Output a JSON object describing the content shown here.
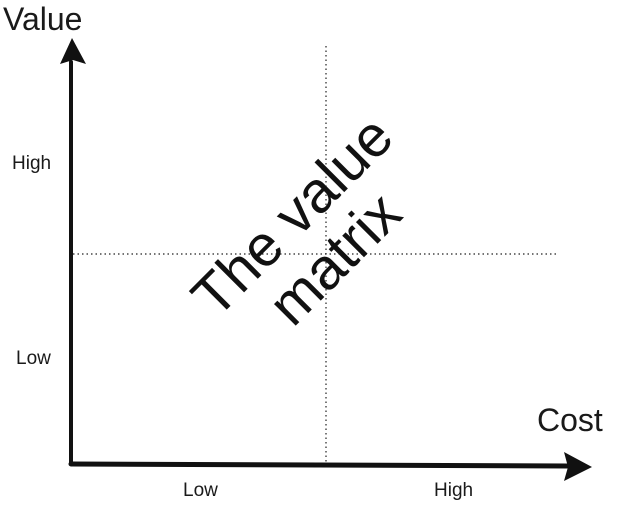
{
  "diagram": {
    "title_line_1": "The value",
    "title_line_2": "matrix",
    "y_axis": {
      "label": "Value",
      "ticks": [
        "High",
        "Low"
      ]
    },
    "x_axis": {
      "label": "Cost",
      "ticks": [
        "Low",
        "High"
      ]
    },
    "quadrants": 4,
    "divider_style": "dotted",
    "colors": {
      "ink": "#111111",
      "background": "#ffffff"
    }
  }
}
